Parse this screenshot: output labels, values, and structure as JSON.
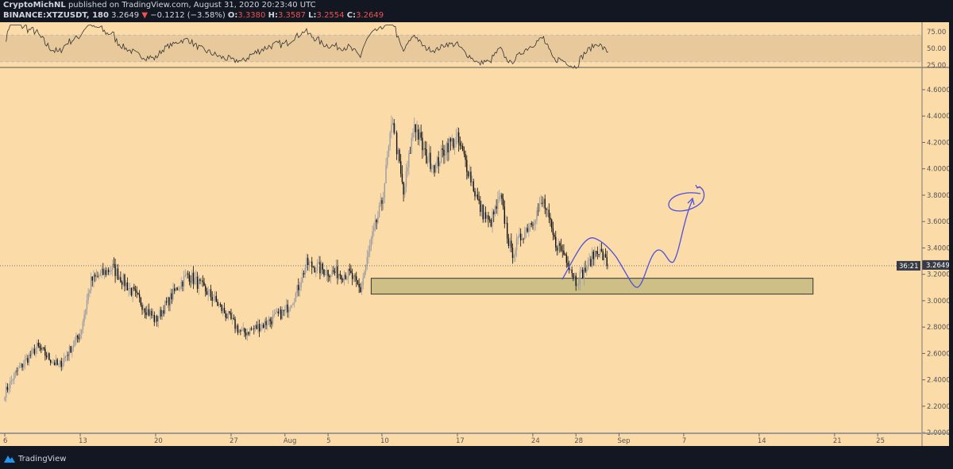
{
  "header": {
    "author": "CryptoMichNL",
    "published_text": "published on TradingView.com, August 31, 2020 20:23:40 UTC",
    "symbol": "BINANCE:XTZUSDT, 180",
    "last": "3.2649",
    "change": "−0.1212 (−3.58%)",
    "o_label": "O:",
    "o": "3.3380",
    "h_label": "H:",
    "h": "3.3587",
    "l_label": "L:",
    "l": "3.2554",
    "c_label": "C:",
    "c": "3.2649",
    "direction_icon": "triangle-down-icon"
  },
  "footer": {
    "brand": "TradingView",
    "logo_icon": "tradingview-logo-icon"
  },
  "colors": {
    "background": "#fbdba8",
    "up": "#9a9ca3",
    "down": "#111111",
    "zone_fill": "#cdbf85",
    "drawing": "#4c4fe0",
    "page": "#131722",
    "label_bg": "#363a45"
  },
  "chart_data": {
    "type": "candlestick",
    "symbol": "XTZUSDT",
    "interval": "180",
    "price_axis": {
      "range": [
        2.0,
        4.7
      ],
      "ticks": [
        "4.6000",
        "4.4000",
        "4.2000",
        "4.0000",
        "3.8000",
        "3.6000",
        "3.4000",
        "3.2000",
        "3.0000",
        "2.8000",
        "2.6000",
        "2.4000",
        "2.2000",
        "2.0000"
      ]
    },
    "last_price_label": "3.2649",
    "countdown_label": "36:21",
    "time_axis": {
      "ticks": [
        {
          "label": "6",
          "date": "2020-07-06"
        },
        {
          "label": "13",
          "date": "2020-07-13"
        },
        {
          "label": "20",
          "date": "2020-07-20"
        },
        {
          "label": "27",
          "date": "2020-07-27"
        },
        {
          "label": "Aug",
          "date": "2020-08-01"
        },
        {
          "label": "5",
          "date": "2020-08-05"
        },
        {
          "label": "10",
          "date": "2020-08-10"
        },
        {
          "label": "17",
          "date": "2020-08-17"
        },
        {
          "label": "24",
          "date": "2020-08-24"
        },
        {
          "label": "28",
          "date": "2020-08-28"
        },
        {
          "label": "Sep",
          "date": "2020-09-01"
        },
        {
          "label": "7",
          "date": "2020-09-07"
        },
        {
          "label": "14",
          "date": "2020-09-14"
        },
        {
          "label": "21",
          "date": "2020-09-21"
        },
        {
          "label": "25",
          "date": "2020-09-25"
        }
      ]
    },
    "close_path": [
      [
        "2020-07-06",
        2.3
      ],
      [
        "2020-07-07",
        2.45
      ],
      [
        "2020-07-09",
        2.65
      ],
      [
        "2020-07-11",
        2.5
      ],
      [
        "2020-07-13",
        2.75
      ],
      [
        "2020-07-14",
        3.15
      ],
      [
        "2020-07-16",
        3.25
      ],
      [
        "2020-07-18",
        3.05
      ],
      [
        "2020-07-20",
        2.85
      ],
      [
        "2020-07-22",
        3.1
      ],
      [
        "2020-07-23",
        3.2
      ],
      [
        "2020-07-25",
        3.05
      ],
      [
        "2020-07-27",
        2.85
      ],
      [
        "2020-07-28",
        2.75
      ],
      [
        "2020-07-30",
        2.82
      ],
      [
        "2020-08-01",
        2.92
      ],
      [
        "2020-08-02",
        3.05
      ],
      [
        "2020-08-03",
        3.28
      ],
      [
        "2020-08-05",
        3.22
      ],
      [
        "2020-08-07",
        3.2
      ],
      [
        "2020-08-08",
        3.08
      ],
      [
        "2020-08-09",
        3.45
      ],
      [
        "2020-08-10",
        3.75
      ],
      [
        "2020-08-11",
        4.38
      ],
      [
        "2020-08-12",
        3.8
      ],
      [
        "2020-08-13",
        4.35
      ],
      [
        "2020-08-14",
        4.1
      ],
      [
        "2020-08-15",
        4.02
      ],
      [
        "2020-08-16",
        4.18
      ],
      [
        "2020-08-17",
        4.22
      ],
      [
        "2020-08-18",
        4.0
      ],
      [
        "2020-08-19",
        3.72
      ],
      [
        "2020-08-20",
        3.58
      ],
      [
        "2020-08-21",
        3.78
      ],
      [
        "2020-08-22",
        3.35
      ],
      [
        "2020-08-23",
        3.5
      ],
      [
        "2020-08-24",
        3.62
      ],
      [
        "2020-08-25",
        3.75
      ],
      [
        "2020-08-26",
        3.45
      ],
      [
        "2020-08-27",
        3.35
      ],
      [
        "2020-08-28",
        3.15
      ],
      [
        "2020-08-29",
        3.25
      ],
      [
        "2020-08-30",
        3.4
      ],
      [
        "2020-08-31",
        3.2649
      ]
    ],
    "rsi": {
      "ticks": [
        "75.00",
        "50.00",
        "25.00"
      ],
      "band": [
        30,
        70
      ]
    },
    "support_zone": {
      "from": "2020-08-09",
      "to": "2020-09-19",
      "low": 3.05,
      "high": 3.17
    }
  }
}
